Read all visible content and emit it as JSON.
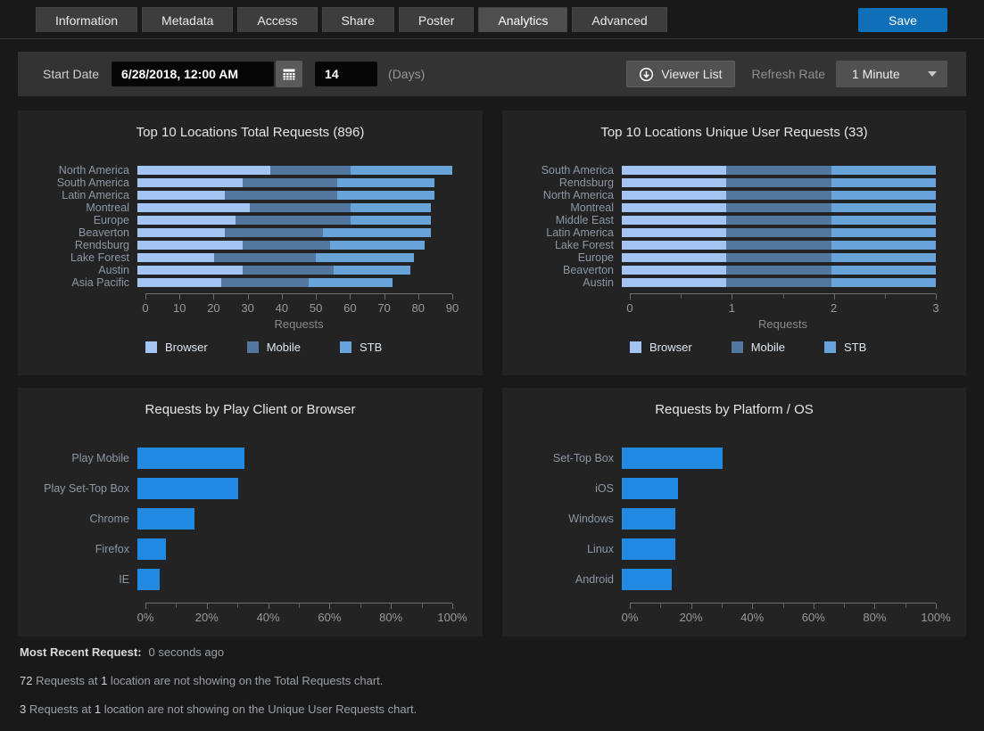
{
  "tabs": {
    "items": [
      {
        "label": "Information",
        "active": false
      },
      {
        "label": "Metadata",
        "active": false
      },
      {
        "label": "Access",
        "active": false
      },
      {
        "label": "Share",
        "active": false
      },
      {
        "label": "Poster",
        "active": false
      },
      {
        "label": "Analytics",
        "active": true
      },
      {
        "label": "Advanced",
        "active": false
      }
    ],
    "save_label": "Save"
  },
  "toolbar": {
    "start_date_label": "Start Date",
    "start_date_value": "6/28/2018, 12:00 AM",
    "days_value": "14",
    "days_caption": "(Days)",
    "viewer_list_label": "Viewer List",
    "refresh_rate_label": "Refresh Rate",
    "refresh_rate_value": "1 Minute"
  },
  "chart_data": [
    {
      "type": "bar",
      "stacked": true,
      "title": "Top 10 Locations Total Requests (896)",
      "categories": [
        "North America",
        "South America",
        "Latin America",
        "Montreal",
        "Europe",
        "Beaverton",
        "Rendsburg",
        "Lake Forest",
        "Austin",
        "Asia Pacific"
      ],
      "series": [
        {
          "name": "Browser",
          "color": "#a4c5f4",
          "values": [
            38,
            30,
            25,
            32,
            28,
            25,
            30,
            22,
            30,
            24
          ]
        },
        {
          "name": "Mobile",
          "color": "#53779f",
          "values": [
            23,
            27,
            32,
            29,
            33,
            28,
            25,
            29,
            26,
            25
          ]
        },
        {
          "name": "STB",
          "color": "#68a4da",
          "values": [
            29,
            28,
            28,
            23,
            23,
            31,
            27,
            28,
            22,
            24
          ]
        }
      ],
      "xlabel": "Requests",
      "xlim": [
        0,
        90
      ],
      "xticks": [
        "0",
        "10",
        "20",
        "30",
        "40",
        "50",
        "60",
        "70",
        "80",
        "90"
      ],
      "minor_ticks": false,
      "legend": [
        "Browser",
        "Mobile",
        "STB"
      ],
      "legend_position": "bottom"
    },
    {
      "type": "bar",
      "stacked": true,
      "title": "Top 10 Locations Unique User Requests (33)",
      "categories": [
        "South America",
        "Rendsburg",
        "North America",
        "Montreal",
        "Middle East",
        "Latin America",
        "Lake Forest",
        "Europe",
        "Beaverton",
        "Austin"
      ],
      "series": [
        {
          "name": "Browser",
          "color": "#a4c5f4",
          "values": [
            1,
            1,
            1,
            1,
            1,
            1,
            1,
            1,
            1,
            1
          ]
        },
        {
          "name": "Mobile",
          "color": "#53779f",
          "values": [
            1,
            1,
            1,
            1,
            1,
            1,
            1,
            1,
            1,
            1
          ]
        },
        {
          "name": "STB",
          "color": "#68a4da",
          "values": [
            1,
            1,
            1,
            1,
            1,
            1,
            1,
            1,
            1,
            1
          ]
        }
      ],
      "xlabel": "Requests",
      "xlim": [
        0,
        3
      ],
      "xticks": [
        "0",
        "1",
        "2",
        "3"
      ],
      "minor_ticks": true,
      "legend": [
        "Browser",
        "Mobile",
        "STB"
      ],
      "legend_position": "bottom"
    },
    {
      "type": "bar",
      "stacked": false,
      "title": "Requests by Play Client or Browser",
      "categories": [
        "Play Mobile",
        "Play Set-Top Box",
        "Chrome",
        "Firefox",
        "IE"
      ],
      "values": [
        34,
        32,
        18,
        9,
        7
      ],
      "unit": "%",
      "color": "#2289e2",
      "xlabel": "",
      "xlim": [
        0,
        100
      ],
      "xticks": [
        "0%",
        "20%",
        "40%",
        "60%",
        "80%",
        "100%"
      ],
      "minor_ticks": true
    },
    {
      "type": "bar",
      "stacked": false,
      "title": "Requests by Platform / OS",
      "categories": [
        "Set-Top Box",
        "iOS",
        "Windows",
        "Linux",
        "Android"
      ],
      "values": [
        32,
        18,
        17,
        17,
        16
      ],
      "unit": "%",
      "color": "#2289e2",
      "xlabel": "",
      "xlim": [
        0,
        100
      ],
      "xticks": [
        "0%",
        "20%",
        "40%",
        "60%",
        "80%",
        "100%"
      ],
      "minor_ticks": true
    }
  ],
  "footer": {
    "recent_label": "Most Recent Request:",
    "recent_value": "0 seconds ago",
    "note1": {
      "n1": "72",
      "t1": " Requests at ",
      "n2": "1",
      "t2": " location are not showing on the Total Requests chart."
    },
    "note2": {
      "n1": "3",
      "t1": " Requests at ",
      "n2": "1",
      "t2": " location are not showing on the Unique User Requests chart."
    }
  },
  "colors": {
    "accent_save": "#0f6fb8",
    "bar_single": "#2289e2",
    "bar_browser": "#a4c5f4",
    "bar_mobile": "#53779f",
    "bar_stb": "#68a4da",
    "panel_bg": "#232323",
    "toolbar_bg": "#333333",
    "page_bg": "#191919"
  }
}
